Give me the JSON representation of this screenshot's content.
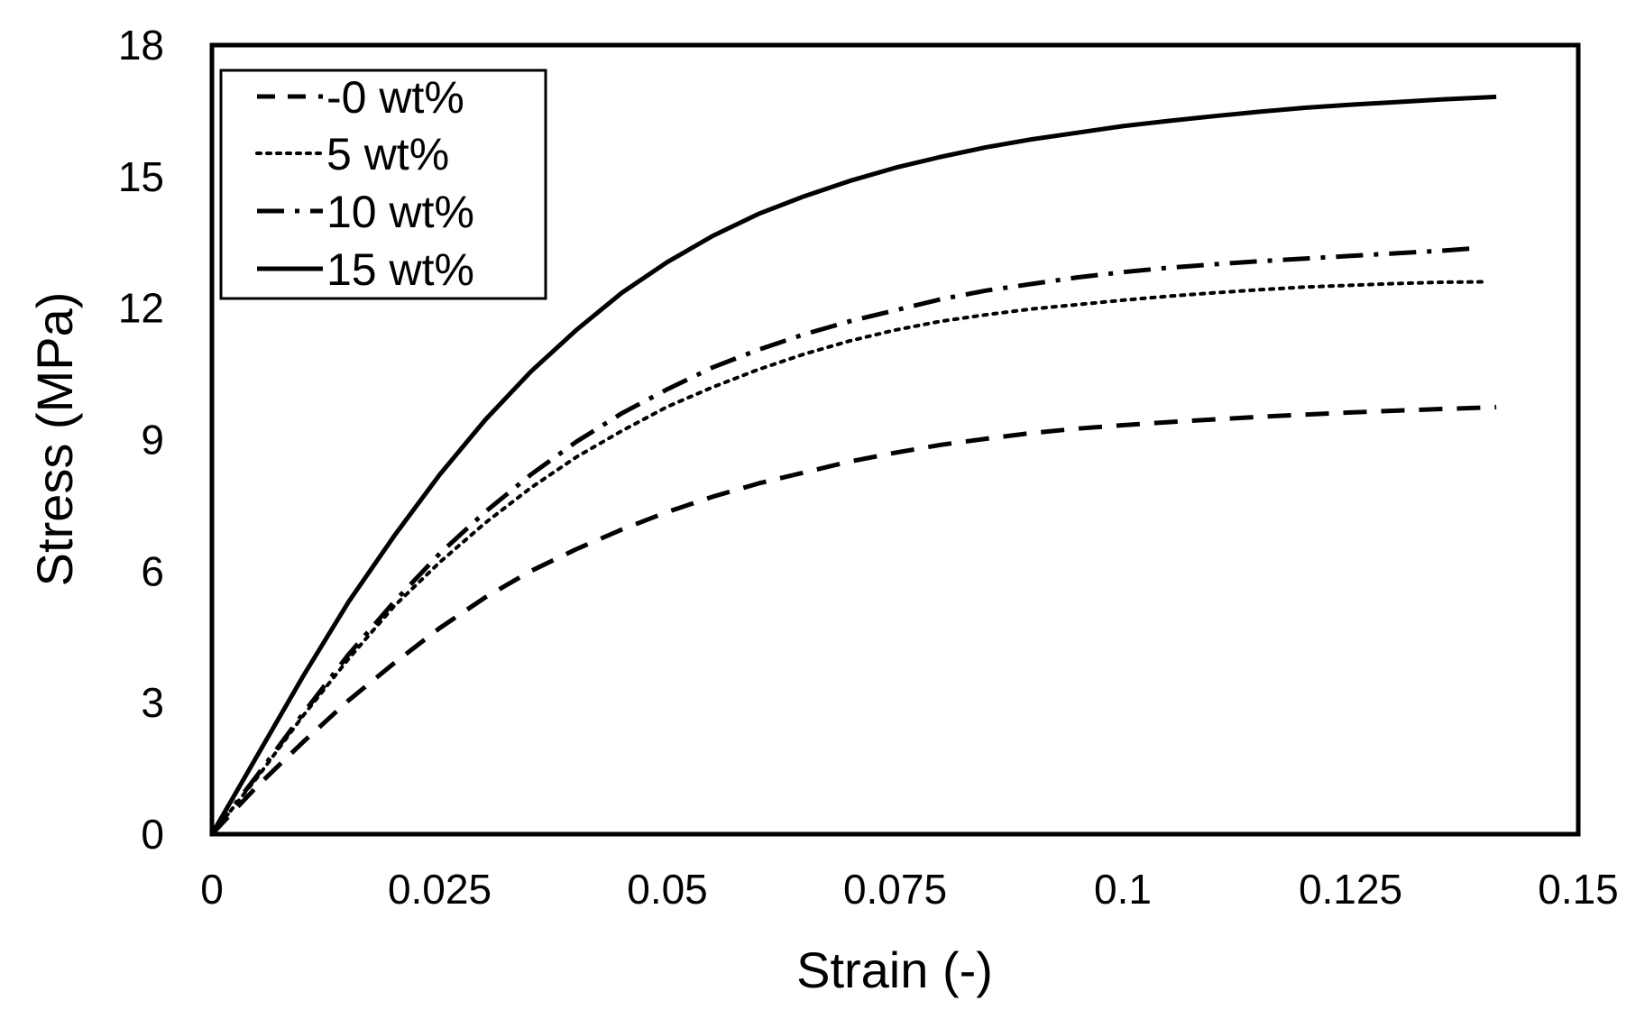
{
  "chart_data": {
    "type": "line",
    "title": "",
    "xlabel": "Strain (-)",
    "ylabel": "Stress (MPa)",
    "xlim": [
      0,
      0.15
    ],
    "ylim": [
      0,
      18
    ],
    "xticks": [
      0,
      0.025,
      0.05,
      0.075,
      0.1,
      0.125,
      0.15
    ],
    "xtick_labels": [
      "0",
      "0.025",
      "0.05",
      "0.075",
      "0.1",
      "0.125",
      "0.15"
    ],
    "yticks": [
      0,
      3,
      6,
      9,
      12,
      15,
      18
    ],
    "ytick_labels": [
      "0",
      "3",
      "6",
      "9",
      "12",
      "15",
      "18"
    ],
    "grid": false,
    "legend_position": "top-left",
    "series": [
      {
        "name": "-0 wt%",
        "line_style": "dashed",
        "color": "#000000",
        "x": [
          0,
          0.005,
          0.01,
          0.015,
          0.02,
          0.025,
          0.03,
          0.035,
          0.04,
          0.045,
          0.05,
          0.055,
          0.06,
          0.065,
          0.07,
          0.075,
          0.08,
          0.085,
          0.09,
          0.095,
          0.1,
          0.105,
          0.11,
          0.115,
          0.12,
          0.125,
          0.13,
          0.135,
          0.141
        ],
        "y": [
          0,
          1.1,
          2.1,
          3.05,
          3.9,
          4.7,
          5.4,
          6.0,
          6.5,
          6.95,
          7.35,
          7.7,
          8.0,
          8.25,
          8.5,
          8.7,
          8.88,
          9.02,
          9.15,
          9.25,
          9.33,
          9.4,
          9.46,
          9.52,
          9.57,
          9.62,
          9.66,
          9.7,
          9.74
        ]
      },
      {
        "name": "5 wt%",
        "line_style": "dotted",
        "color": "#000000",
        "x": [
          0,
          0.005,
          0.01,
          0.015,
          0.02,
          0.025,
          0.03,
          0.035,
          0.04,
          0.045,
          0.05,
          0.055,
          0.06,
          0.065,
          0.07,
          0.075,
          0.08,
          0.085,
          0.09,
          0.095,
          0.1,
          0.105,
          0.11,
          0.115,
          0.12,
          0.125,
          0.13,
          0.135,
          0.14
        ],
        "y": [
          0,
          1.3,
          2.7,
          4.0,
          5.2,
          6.2,
          7.1,
          7.9,
          8.6,
          9.2,
          9.75,
          10.2,
          10.6,
          10.95,
          11.25,
          11.5,
          11.7,
          11.85,
          11.98,
          12.08,
          12.18,
          12.27,
          12.35,
          12.42,
          12.48,
          12.52,
          12.56,
          12.59,
          12.6
        ]
      },
      {
        "name": "10 wt%",
        "line_style": "dash-dot",
        "color": "#000000",
        "x": [
          0,
          0.005,
          0.01,
          0.015,
          0.02,
          0.025,
          0.03,
          0.035,
          0.04,
          0.045,
          0.05,
          0.055,
          0.06,
          0.065,
          0.07,
          0.075,
          0.08,
          0.085,
          0.09,
          0.095,
          0.1,
          0.105,
          0.11,
          0.115,
          0.12,
          0.125,
          0.13,
          0.135,
          0.139
        ],
        "y": [
          0,
          1.35,
          2.75,
          4.1,
          5.3,
          6.4,
          7.35,
          8.2,
          8.95,
          9.6,
          10.15,
          10.65,
          11.05,
          11.4,
          11.7,
          11.95,
          12.2,
          12.4,
          12.55,
          12.7,
          12.82,
          12.92,
          13.0,
          13.07,
          13.13,
          13.19,
          13.25,
          13.31,
          13.37
        ]
      },
      {
        "name": "15 wt%",
        "line_style": "solid",
        "color": "#000000",
        "x": [
          0,
          0.005,
          0.01,
          0.015,
          0.02,
          0.025,
          0.03,
          0.035,
          0.04,
          0.045,
          0.05,
          0.055,
          0.06,
          0.065,
          0.07,
          0.075,
          0.08,
          0.085,
          0.09,
          0.095,
          0.1,
          0.105,
          0.11,
          0.115,
          0.12,
          0.125,
          0.13,
          0.135,
          0.141
        ],
        "y": [
          0,
          1.8,
          3.6,
          5.3,
          6.8,
          8.2,
          9.45,
          10.55,
          11.5,
          12.35,
          13.05,
          13.65,
          14.15,
          14.55,
          14.9,
          15.2,
          15.45,
          15.67,
          15.85,
          16.0,
          16.15,
          16.27,
          16.38,
          16.48,
          16.57,
          16.64,
          16.7,
          16.76,
          16.82
        ]
      }
    ]
  }
}
